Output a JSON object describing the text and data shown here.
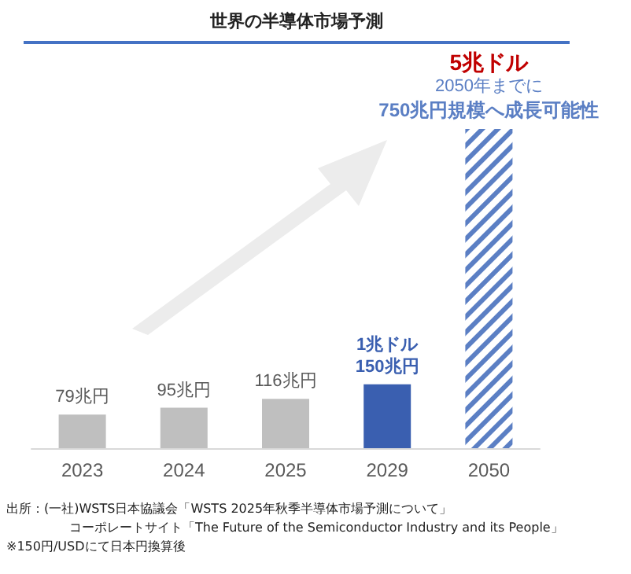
{
  "chart_data": {
    "type": "bar",
    "title": "世界の半導体市場予測",
    "categories": [
      "2023",
      "2024",
      "2025",
      "2029",
      "2050"
    ],
    "values": [
      79,
      95,
      116,
      150,
      750
    ],
    "colors": [
      "#bfbfbf",
      "#bfbfbf",
      "#bfbfbf",
      "#3a5fb0",
      "#5b7fc4"
    ],
    "value_labels": [
      "79兆円",
      "95兆円",
      "116兆円",
      "1兆ドル\n150兆円",
      "5兆ドル\n2050年までに\n750兆円規模へ成長可能性"
    ],
    "annotations": [
      "出所：(一社)WSTS日本協議会「WSTS 2025年秋季半導体市場予測について」",
      "コーポレートサイト「The Future of the Semiconductor Industry and its People」",
      "※150円/USDにて日本円換算後"
    ],
    "grid": false
  }
}
